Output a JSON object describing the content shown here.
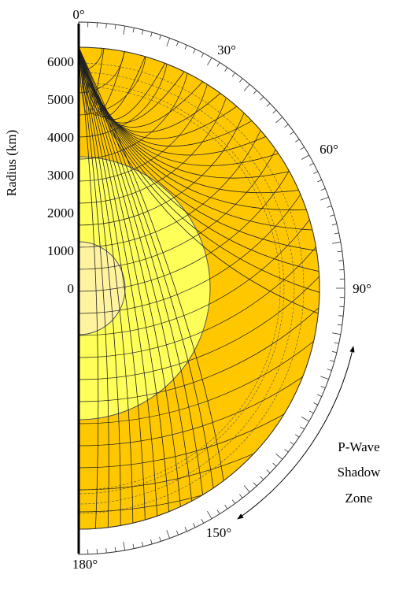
{
  "axis": {
    "label": "Radius (km)",
    "ticks": [
      0,
      1000,
      2000,
      3000,
      4000,
      5000,
      6000
    ]
  },
  "angles": [
    "0°",
    "30°",
    "60°",
    "90°",
    "150°",
    "180°"
  ],
  "annotation": {
    "lines": [
      "P-Wave",
      "Shadow",
      "Zone"
    ]
  }
}
